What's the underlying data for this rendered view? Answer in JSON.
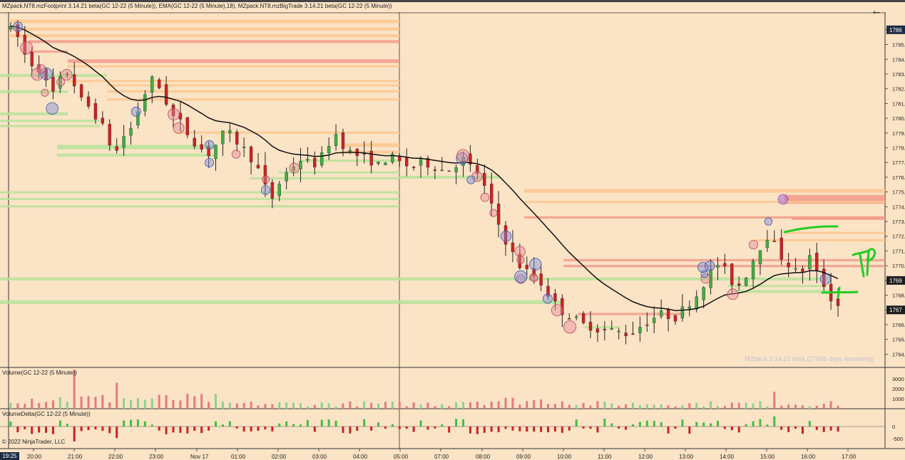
{
  "app": {
    "title": "MZpack.NT8.mzFootprint 3.14.21 beta(GC 12-22 (5 Minute)), EMA(GC 12-22 (5 Minute),18), MZpack.NT8.mzBigTrade 3.14.21 beta(GC 12-22 (5 Minute))",
    "watermark": "MZpack 3.14.21 beta  (27846 days remaining)",
    "copyright": "© 2022 NinjaTrader, LLC",
    "time_tag": "19:25",
    "back_icon": "arrow-left-icon"
  },
  "panels": {
    "volume_label": "Volume(GC 12-22 (5 Minute))",
    "delta_label": "VolumeDelta(GC 12-22 (5 Minute))"
  },
  "colors": {
    "background": "#fbe3c6",
    "up": "#3fae3f",
    "down": "#d02020",
    "ema": "#111111",
    "level_red": "#f29a88",
    "level_orange": "#fbc78e",
    "level_green": "#b7e39a",
    "annotation": "#22cc22",
    "bubble_blue": "#7a8fd8",
    "bubble_pink": "#e58a9a",
    "bubble_purple": "#a060d8"
  },
  "chart_data": {
    "type": "candlestick",
    "instrument": "GC 12-22 (5 Minute)",
    "indicators": [
      "mzFootprint",
      "EMA 18",
      "mzBigTrade",
      "Volume",
      "VolumeDelta"
    ],
    "y_ticks": [
      1786,
      1785,
      1784,
      1783,
      1782,
      1781,
      1780,
      1779,
      1778,
      1777,
      1776,
      1775,
      1774,
      1773,
      1772,
      1771,
      1770,
      1769,
      1768,
      1767,
      1766,
      1765,
      1764
    ],
    "y_range": [
      1763.1,
      1787.2
    ],
    "last_price_tags": [
      "1786",
      "1769",
      "1767"
    ],
    "volume_ticks": [
      "3000",
      "2000",
      "1000"
    ],
    "volume_range": [
      0,
      4000
    ],
    "delta_ticks": [
      "0",
      "-500"
    ],
    "delta_range": [
      -800,
      800
    ],
    "x_ticks": [
      "20:00",
      "21:00",
      "22:00",
      "23:00",
      "Nov 17",
      "01:00",
      "02:00",
      "03:00",
      "04:00",
      "05:00",
      "07:00",
      "08:00",
      "09:00",
      "10:00",
      "11:00",
      "12:00",
      "13:00",
      "14:00",
      "15:00",
      "16:00",
      "17:00"
    ],
    "close_path": [
      1786.0,
      1785.5,
      1784.3,
      1783.7,
      1783.4,
      1782.4,
      1781.7,
      1782.6,
      1783.1,
      1782.3,
      1781.2,
      1780.8,
      1780.2,
      1779.4,
      1778.3,
      1777.8,
      1778.8,
      1779.3,
      1780.5,
      1781.7,
      1782.6,
      1782.1,
      1781.1,
      1780.1,
      1779.7,
      1779.0,
      1778.4,
      1777.9,
      1777.6,
      1778.2,
      1778.9,
      1778.9,
      1778.4,
      1777.9,
      1777.3,
      1776.5,
      1775.3,
      1774.6,
      1775.6,
      1776.3,
      1776.8,
      1777.2,
      1777.0,
      1776.9,
      1777.4,
      1778.3,
      1778.9,
      1778.2,
      1777.7,
      1777.5,
      1777.3,
      1777.1,
      1776.8,
      1777.2,
      1777.3,
      1777.0,
      1776.8,
      1776.7,
      1777.0,
      1776.9,
      1776.7,
      1776.5,
      1776.5,
      1776.9,
      1777.2,
      1776.7,
      1776.3,
      1775.3,
      1774.0,
      1772.8,
      1771.7,
      1770.8,
      1770.0,
      1769.6,
      1769.3,
      1768.8,
      1768.1,
      1767.4,
      1766.9,
      1766.6,
      1766.3,
      1766.0,
      1765.9,
      1765.7,
      1765.6,
      1765.6,
      1765.5,
      1765.4,
      1765.5,
      1765.9,
      1766.2,
      1766.5,
      1766.7,
      1766.6,
      1766.5,
      1767.0,
      1767.5,
      1768.0,
      1768.8,
      1769.6,
      1770.1,
      1769.7,
      1768.9,
      1768.7,
      1769.4,
      1770.4,
      1771.3,
      1772.0,
      1771.4,
      1770.6,
      1770.1,
      1769.6,
      1769.7,
      1770.6,
      1769.5,
      1768.7,
      1767.8,
      1767.3
    ],
    "ema_period": 18,
    "big_trade_bubbles": 60
  },
  "annotations": {
    "handwritten_text": "TP",
    "lines": 2
  }
}
